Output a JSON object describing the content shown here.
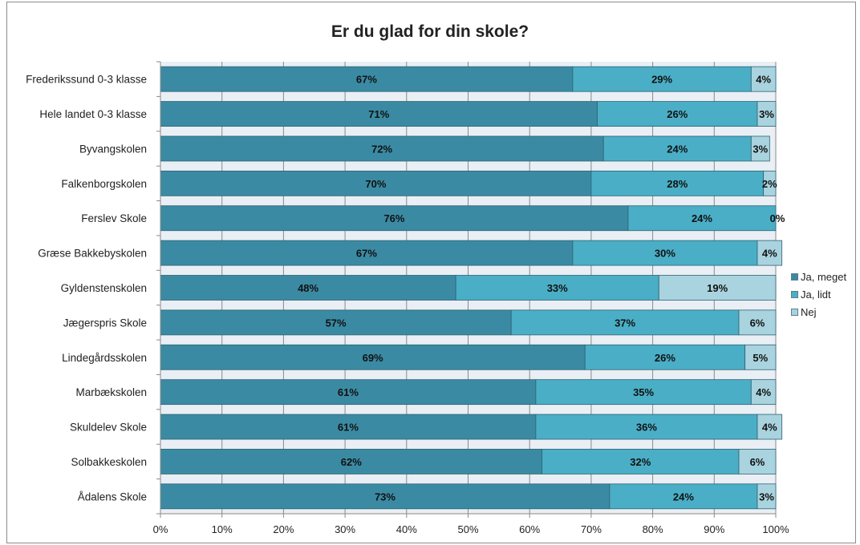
{
  "chart_data": {
    "type": "bar",
    "orientation": "horizontal",
    "stacked": true,
    "title": "Er du glad for din skole?",
    "categories": [
      "Frederikssund 0-3 klasse",
      "Hele landet 0-3 klasse",
      "Byvangskolen",
      "Falkenborgskolen",
      "Ferslev Skole",
      "Græse Bakkebyskolen",
      "Gyldenstenskolen",
      "Jægerspris Skole",
      "Lindegårdsskolen",
      "Marbækskolen",
      "Skuldelev Skole",
      "Solbakkeskolen",
      "Ådalens Skole"
    ],
    "series": [
      {
        "name": "Ja, meget",
        "color": "#3b8aa3",
        "values": [
          67,
          71,
          72,
          70,
          76,
          67,
          48,
          57,
          69,
          61,
          61,
          62,
          73
        ]
      },
      {
        "name": "Ja, lidt",
        "color": "#4aaec6",
        "values": [
          29,
          26,
          24,
          28,
          24,
          30,
          33,
          37,
          26,
          35,
          36,
          32,
          24
        ]
      },
      {
        "name": "Nej",
        "color": "#a9d3de",
        "values": [
          4,
          3,
          3,
          2,
          0,
          4,
          19,
          6,
          5,
          4,
          4,
          6,
          3
        ]
      }
    ],
    "xlim": [
      0,
      100
    ],
    "xticks": [
      "0%",
      "10%",
      "20%",
      "30%",
      "40%",
      "50%",
      "60%",
      "70%",
      "80%",
      "90%",
      "100%"
    ],
    "grid": true,
    "legend_position": "right"
  }
}
